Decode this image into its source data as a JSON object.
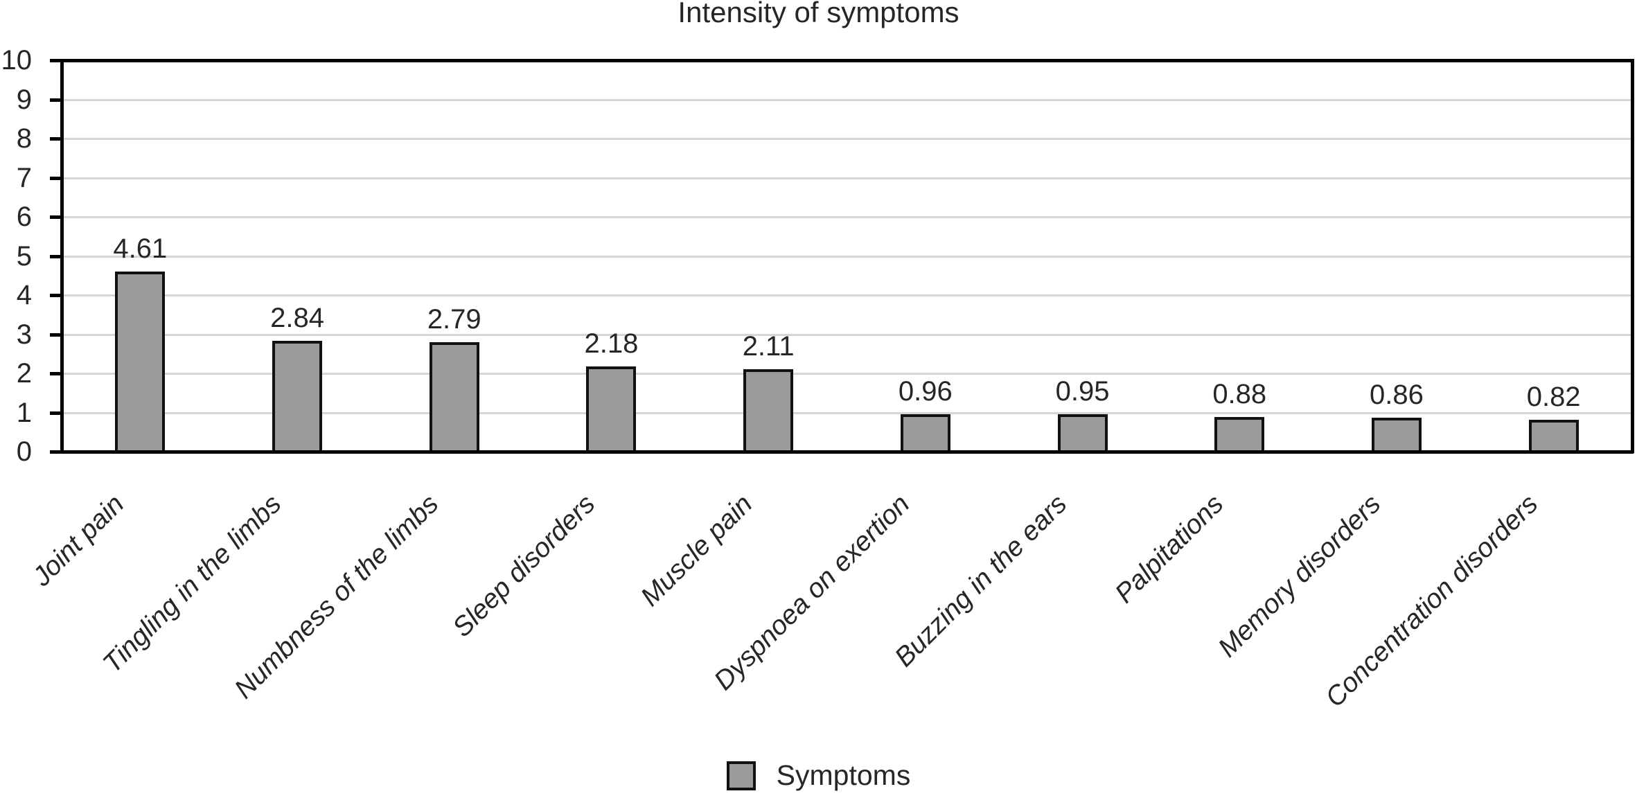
{
  "chart_data": {
    "type": "bar",
    "title": "Intensity of symptoms",
    "categories": [
      "Joint pain",
      "Tingling in the limbs",
      "Numbness of the limbs",
      "Sleep disorders",
      "Muscle pain",
      "Dyspnoea on exertion",
      "Buzzing in the ears",
      "Palpitations",
      "Memory disorders",
      "Concentration disorders"
    ],
    "series": [
      {
        "name": "Symptoms",
        "values": [
          4.61,
          2.84,
          2.79,
          2.18,
          2.11,
          0.96,
          0.95,
          0.88,
          0.86,
          0.82
        ]
      }
    ],
    "value_labels": [
      "4.61",
      "2.84",
      "2.79",
      "2.18",
      "2.11",
      "0.96",
      "0.95",
      "0.88",
      "0.86",
      "0.82"
    ],
    "xlabel": "",
    "ylabel": "",
    "ylim": [
      0,
      10
    ],
    "y_tick_labels": [
      "0",
      "1",
      "2",
      "3",
      "4",
      "5",
      "6",
      "7",
      "8",
      "9",
      "10"
    ],
    "grid": "horizontal",
    "legend": {
      "label": "Symptoms",
      "position": "bottom-center",
      "swatch": "gray-square"
    },
    "colors": {
      "bar_fill": "#9b9b9b",
      "bar_border": "#111111",
      "gridline": "#d6d6d6",
      "axis": "#000000",
      "text": "#262626"
    }
  }
}
